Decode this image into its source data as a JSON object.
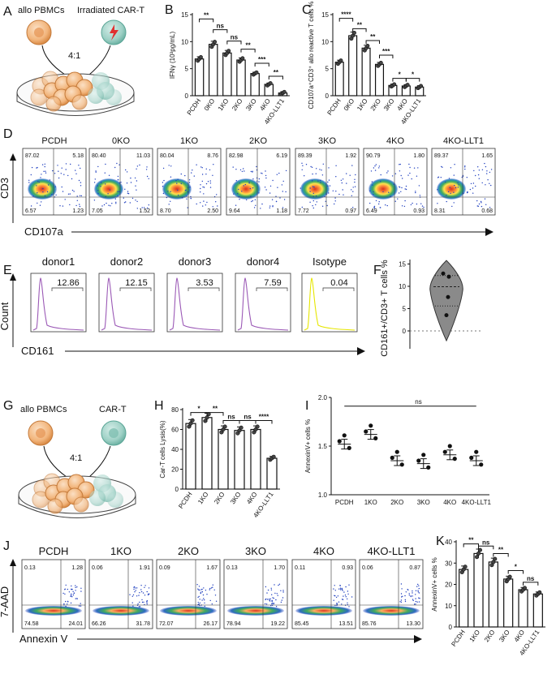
{
  "panels": {
    "A": {
      "letter": "A",
      "label_left": "allo PBMCs",
      "label_right": "Irradiated CAR-T",
      "ratio": "4:1"
    },
    "B": {
      "letter": "B"
    },
    "C": {
      "letter": "C"
    },
    "D": {
      "letter": "D",
      "y_axis": "CD3",
      "x_axis": "CD107a"
    },
    "E": {
      "letter": "E",
      "y_axis": "Count",
      "x_axis": "CD161"
    },
    "F": {
      "letter": "F"
    },
    "G": {
      "letter": "G",
      "label_left": "allo PBMCs",
      "label_right": "CAR-T",
      "ratio": "4:1"
    },
    "H": {
      "letter": "H"
    },
    "I": {
      "letter": "I"
    },
    "J": {
      "letter": "J",
      "y_axis": "7-AAD",
      "x_axis": "Annexin V"
    },
    "K": {
      "letter": "K"
    }
  },
  "flow_D": [
    {
      "name": "PCDH",
      "ul": "87.02",
      "ur": "5.18",
      "ll": "6.57",
      "lr": "1.23"
    },
    {
      "name": "0KO",
      "ul": "80.40",
      "ur": "11.03",
      "ll": "7.05",
      "lr": "1.52"
    },
    {
      "name": "1KO",
      "ul": "80.04",
      "ur": "8.76",
      "ll": "8.70",
      "lr": "2.50"
    },
    {
      "name": "2KO",
      "ul": "82.98",
      "ur": "6.19",
      "ll": "9.64",
      "lr": "1.18"
    },
    {
      "name": "3KO",
      "ul": "89.39",
      "ur": "1.92",
      "ll": "7.72",
      "lr": "0.97"
    },
    {
      "name": "4KO",
      "ul": "90.79",
      "ur": "1.80",
      "ll": "6.49",
      "lr": "0.93"
    },
    {
      "name": "4KO-LLT1",
      "ul": "89.37",
      "ur": "1.65",
      "ll": "8.31",
      "lr": "0.68"
    }
  ],
  "hist_E": [
    {
      "name": "donor1",
      "value": "12.86",
      "color": "#9b59b6"
    },
    {
      "name": "donor2",
      "value": "12.15",
      "color": "#9b59b6"
    },
    {
      "name": "donor3",
      "value": "3.53",
      "color": "#9b59b6"
    },
    {
      "name": "donor4",
      "value": "7.59",
      "color": "#9b59b6"
    },
    {
      "name": "Isotype",
      "value": "0.04",
      "color": "#e6e600"
    }
  ],
  "flow_J": [
    {
      "name": "PCDH",
      "ul": "0.13",
      "ur": "1.28",
      "ll": "74.58",
      "lr": "24.01"
    },
    {
      "name": "1KO",
      "ul": "0.06",
      "ur": "1.91",
      "ll": "66.26",
      "lr": "31.78"
    },
    {
      "name": "2KO",
      "ul": "0.09",
      "ur": "1.67",
      "ll": "72.07",
      "lr": "26.17"
    },
    {
      "name": "3KO",
      "ul": "0.13",
      "ur": "1.70",
      "ll": "78.94",
      "lr": "19.22"
    },
    {
      "name": "4KO",
      "ul": "0.11",
      "ur": "0.93",
      "ll": "85.45",
      "lr": "13.51"
    },
    {
      "name": "4KO-LLT1",
      "ul": "0.06",
      "ur": "0.87",
      "ll": "85.76",
      "lr": "13.30"
    }
  ],
  "chart_data": [
    {
      "id": "B",
      "type": "bar",
      "ylabel": "IFNγ (10³pg/mL)",
      "ylim": [
        0,
        15
      ],
      "yticks": [
        "0",
        "5",
        "10",
        "15"
      ],
      "categories": [
        "PCDH",
        "0KO",
        "1KO",
        "2KO",
        "3KO",
        "4KO",
        "4KO-LLT1"
      ],
      "values": [
        6.8,
        9.5,
        7.9,
        6.6,
        4.1,
        2.1,
        0.5
      ],
      "sig": [
        {
          "from": 0,
          "to": 1,
          "label": "**",
          "lvl": 14.2
        },
        {
          "from": 1,
          "to": 2,
          "label": "ns",
          "lvl": 12.2
        },
        {
          "from": 2,
          "to": 3,
          "label": "ns",
          "lvl": 10.1
        },
        {
          "from": 3,
          "to": 4,
          "label": "**",
          "lvl": 8.6
        },
        {
          "from": 4,
          "to": 5,
          "label": "***",
          "lvl": 6.0
        },
        {
          "from": 5,
          "to": 6,
          "label": "**",
          "lvl": 3.6
        }
      ]
    },
    {
      "id": "C",
      "type": "bar",
      "ylabel": "CD107a⁺CD3⁺ allo reactive T cells %",
      "ylim": [
        0,
        15
      ],
      "yticks": [
        "0",
        "5",
        "10",
        "15"
      ],
      "categories": [
        "PCDH",
        "0KO",
        "1KO",
        "2KO",
        "3KO",
        "4KO",
        "4KO-LLT1"
      ],
      "values": [
        6.2,
        11.1,
        8.8,
        5.8,
        1.9,
        1.8,
        1.6
      ],
      "sig": [
        {
          "from": 0,
          "to": 1,
          "label": "****",
          "lvl": 14.3
        },
        {
          "from": 1,
          "to": 2,
          "label": "**",
          "lvl": 12.4
        },
        {
          "from": 2,
          "to": 3,
          "label": "**",
          "lvl": 10.2
        },
        {
          "from": 3,
          "to": 4,
          "label": "***",
          "lvl": 7.5
        },
        {
          "from": 4,
          "to": 5,
          "label": "*",
          "lvl": 3.2
        },
        {
          "from": 5,
          "to": 6,
          "label": "*",
          "lvl": 3.2
        }
      ]
    },
    {
      "id": "F",
      "type": "scatter",
      "ylabel": "CD161+/CD3+ T cells %",
      "ylim": [
        -4,
        16
      ],
      "yticks": [
        "-5",
        "0",
        "5",
        "10",
        "15"
      ],
      "values": [
        12.86,
        12.15,
        3.53,
        7.59
      ]
    },
    {
      "id": "H",
      "type": "bar",
      "ylabel": "Car-T cells Lysis(%)",
      "ylim": [
        0,
        80
      ],
      "yticks": [
        "0",
        "20",
        "40",
        "60",
        "80"
      ],
      "categories": [
        "PCDH",
        "1KO",
        "2KO",
        "3KO",
        "4KO",
        "4KO-LLT1"
      ],
      "values": [
        66,
        72,
        60,
        59,
        60,
        31
      ],
      "sig": [
        {
          "from": 0,
          "to": 1,
          "label": "*",
          "lvl": 77
        },
        {
          "from": 1,
          "to": 2,
          "label": "**",
          "lvl": 77
        },
        {
          "from": 2,
          "to": 3,
          "label": "ns",
          "lvl": 69
        },
        {
          "from": 3,
          "to": 4,
          "label": "ns",
          "lvl": 69
        },
        {
          "from": 4,
          "to": 5,
          "label": "****",
          "lvl": 69
        }
      ]
    },
    {
      "id": "I",
      "type": "scatter",
      "ylabel": "AnnexinV+ cells %",
      "ylim": [
        1.0,
        2.0
      ],
      "yticks": [
        "1.0",
        "1.5",
        "2.0"
      ],
      "categories": [
        "PCDH",
        "1KO",
        "2KO",
        "3KO",
        "4KO",
        "4KO-LLT1"
      ],
      "values": [
        1.52,
        1.62,
        1.35,
        1.32,
        1.41,
        1.35
      ],
      "sig_label": "ns"
    },
    {
      "id": "K",
      "type": "bar",
      "ylabel": "AnnexinV+ cells %",
      "ylim": [
        0,
        40
      ],
      "yticks": [
        "0",
        "10",
        "20",
        "30",
        "40"
      ],
      "categories": [
        "PCDH",
        "1KO",
        "2KO",
        "3KO",
        "4KO",
        "4KO-LLT1"
      ],
      "values": [
        27,
        34.5,
        30.5,
        22.5,
        17.5,
        15.5
      ],
      "sig": [
        {
          "from": 0,
          "to": 1,
          "label": "**",
          "lvl": 39
        },
        {
          "from": 1,
          "to": 2,
          "label": "ns",
          "lvl": 38
        },
        {
          "from": 2,
          "to": 3,
          "label": "**",
          "lvl": 34.5
        },
        {
          "from": 3,
          "to": 4,
          "label": "*",
          "lvl": 26.5
        },
        {
          "from": 4,
          "to": 5,
          "label": "ns",
          "lvl": 21
        }
      ]
    }
  ]
}
